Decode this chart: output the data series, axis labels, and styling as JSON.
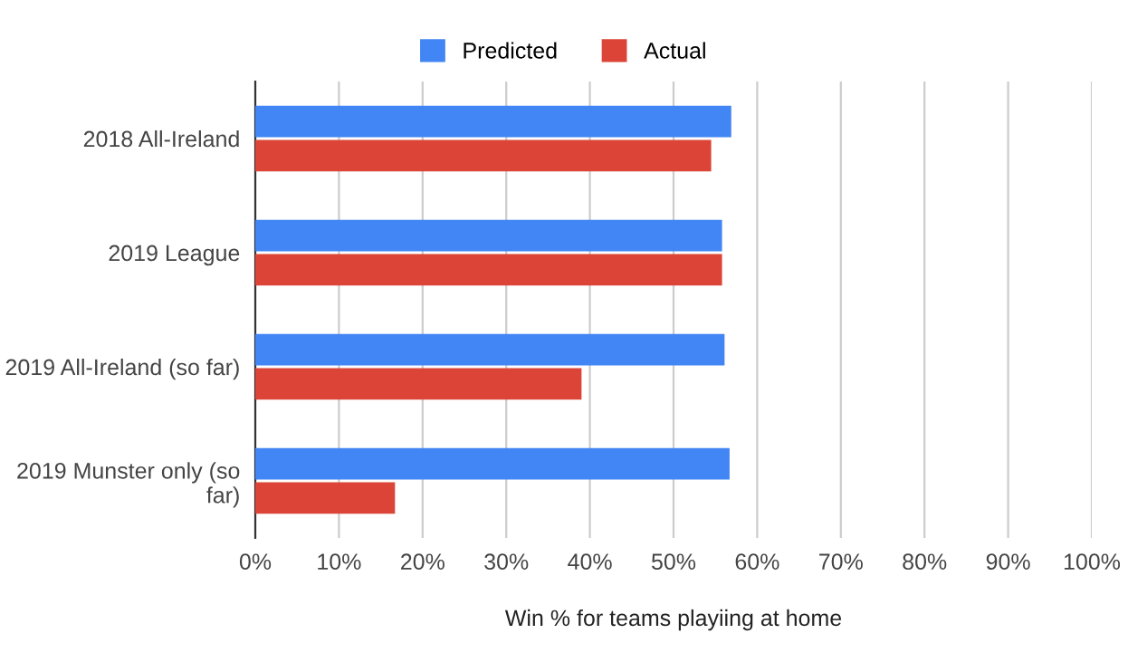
{
  "chart_data": {
    "type": "bar",
    "orientation": "horizontal",
    "xlabel": "Win % for teams playiing at home",
    "categories": [
      "2018 All-Ireland",
      "2019 League",
      "2019 All-Ireland (so far)",
      "2019 Munster only (so far)"
    ],
    "series": [
      {
        "name": "Predicted",
        "color": "#4285f4",
        "values": [
          56.9,
          55.8,
          56.1,
          56.7
        ]
      },
      {
        "name": "Actual",
        "color": "#db4437",
        "values": [
          54.5,
          55.8,
          39.0,
          16.7
        ]
      }
    ],
    "xlim": [
      0,
      100
    ],
    "xticks": [
      {
        "value": 0,
        "label": "0%"
      },
      {
        "value": 10,
        "label": "10%"
      },
      {
        "value": 20,
        "label": "20%"
      },
      {
        "value": 30,
        "label": "30%"
      },
      {
        "value": 40,
        "label": "40%"
      },
      {
        "value": 50,
        "label": "50%"
      },
      {
        "value": 60,
        "label": "60%"
      },
      {
        "value": 70,
        "label": "70%"
      },
      {
        "value": 80,
        "label": "80%"
      },
      {
        "value": 90,
        "label": "90%"
      },
      {
        "value": 100,
        "label": "100%"
      }
    ],
    "grid": "x",
    "legend": "top"
  }
}
